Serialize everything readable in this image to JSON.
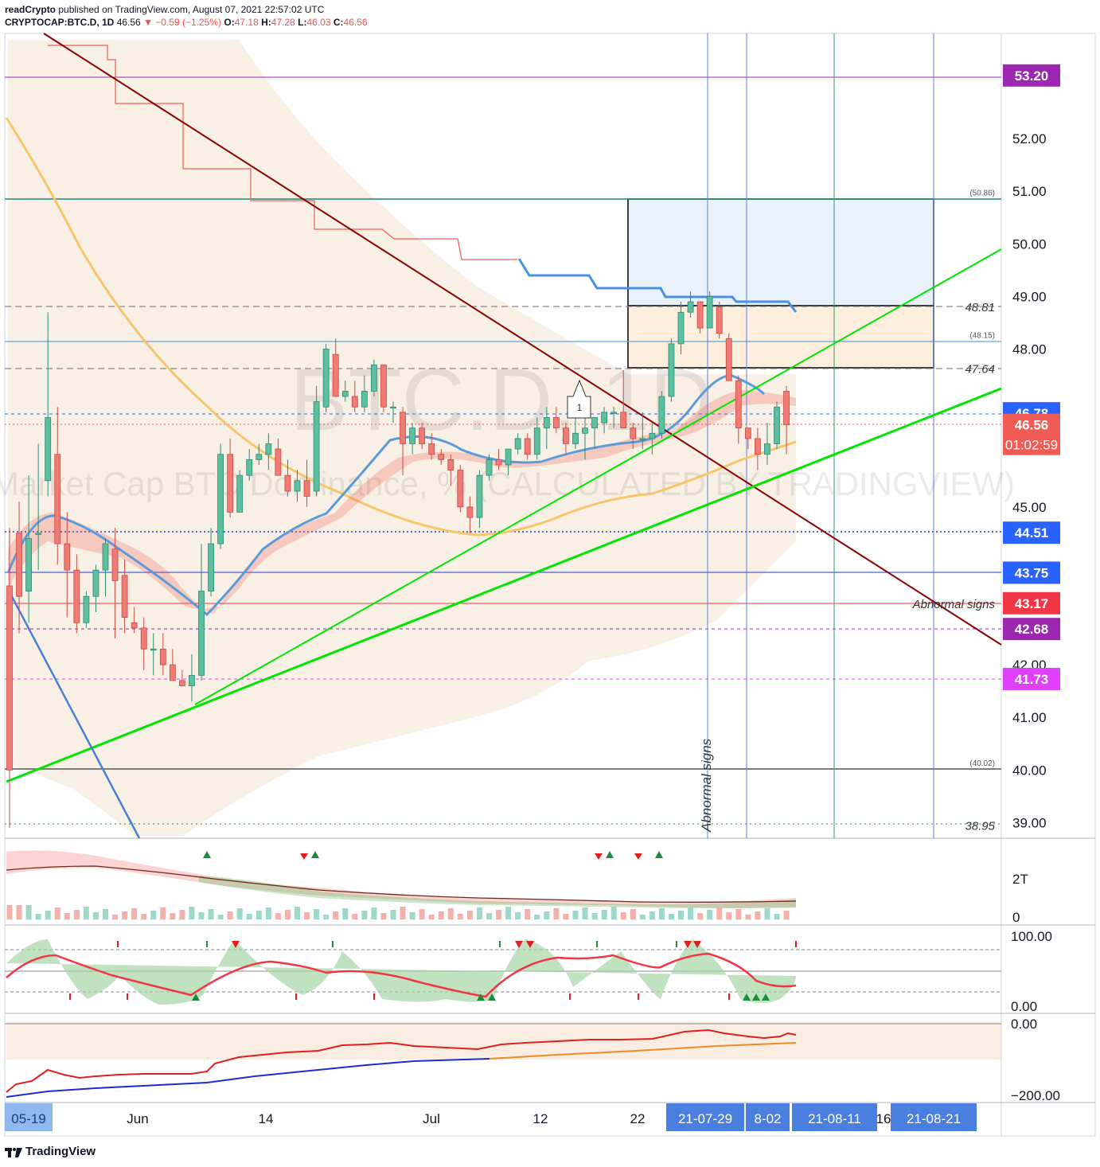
{
  "header": {
    "author": "readCrypto",
    "published_text": "published on TradingView.com, August 07, 2021 22:57:02 UTC",
    "symbol": "CRYPTOCAP:BTC.D, 1D",
    "last": "46.56",
    "change": "−0.59 (−1.25%)",
    "o_label": "O:",
    "o": "47.18",
    "h_label": "H:",
    "h": "47.28",
    "l_label": "L:",
    "l": "46.03",
    "c_label": "C:",
    "c": "46.56"
  },
  "watermark": {
    "ticker": "BTC.D, 1D",
    "description": "Market Cap BTC Dominance, % (CALCULATED BY TRADINGVIEW)"
  },
  "footer": {
    "brand": "TradingView"
  },
  "colors": {
    "up": "#26a69a",
    "down": "#ef5350",
    "purple": "#9c27b0",
    "blue_badge": "#2962ff",
    "red_badge": "#f23645",
    "magenta_badge": "#e040fb",
    "green_line": "#00e600",
    "dark_red_line": "#8b0000"
  },
  "chart_data": {
    "type": "candlestick",
    "title": "CRYPTOCAP:BTC.D, 1D",
    "y_axis": {
      "ticks": [
        "52.00",
        "51.00",
        "50.00",
        "49.00",
        "48.00",
        "45.00",
        "42.00",
        "41.00",
        "40.00",
        "39.00"
      ],
      "range": [
        38.7,
        53.6
      ]
    },
    "x_axis": {
      "ticks": [
        "Jun",
        "14",
        "Jul",
        "12",
        "22",
        "16"
      ]
    },
    "x_badges": [
      "05-19",
      "21-07-29",
      "8-02",
      "21-08-11",
      "21-08-21"
    ],
    "price_badges": [
      {
        "value": "53.20",
        "color": "#9c27b0"
      },
      {
        "value": "46.78",
        "color": "#2962ff"
      },
      {
        "value": "46.56",
        "extra": "01:02:59",
        "color": "#f05b55"
      },
      {
        "value": "44.51",
        "color": "#2962ff"
      },
      {
        "value": "43.75",
        "color": "#2962ff"
      },
      {
        "value": "43.17",
        "color": "#f23645"
      },
      {
        "value": "42.68",
        "color": "#9c27b0"
      },
      {
        "value": "41.73",
        "color": "#e040fb"
      }
    ],
    "level_labels": [
      {
        "value": "48.81",
        "text": "48.81"
      },
      {
        "value": "47.64",
        "text": "47.64"
      },
      {
        "value": "38.95",
        "text": "38.95"
      },
      {
        "value": "50.86",
        "text": "(50.86)"
      },
      {
        "value": "48.15",
        "text": "(48.15)"
      },
      {
        "value": "40.02",
        "text": "(40.02)"
      }
    ],
    "annotations": [
      "Abnormal signs",
      "Abnormal signs",
      "1"
    ],
    "candles": [
      [
        43.5,
        44.6,
        38.9,
        40.0
      ],
      [
        44.5,
        45.1,
        42.6,
        43.3
      ],
      [
        43.4,
        45.6,
        42.8,
        44.4
      ],
      [
        44.5,
        46.2,
        43.8,
        44.5
      ],
      [
        45.5,
        48.7,
        45.2,
        46.7
      ],
      [
        46.0,
        46.9,
        43.9,
        44.3
      ],
      [
        44.3,
        44.9,
        42.9,
        43.8
      ],
      [
        43.8,
        44.1,
        42.6,
        42.8
      ],
      [
        42.8,
        43.4,
        42.7,
        43.3
      ],
      [
        43.3,
        43.9,
        43.0,
        43.8
      ],
      [
        43.8,
        44.4,
        43.3,
        44.3
      ],
      [
        44.2,
        44.6,
        42.5,
        43.6
      ],
      [
        43.7,
        44.0,
        42.6,
        42.9
      ],
      [
        42.8,
        43.1,
        42.6,
        42.7
      ],
      [
        42.7,
        42.9,
        41.9,
        42.3
      ],
      [
        42.3,
        42.6,
        41.8,
        42.3
      ],
      [
        42.3,
        42.6,
        41.8,
        42.0
      ],
      [
        42.0,
        42.3,
        41.7,
        41.7
      ],
      [
        41.7,
        41.9,
        41.6,
        41.6
      ],
      [
        41.6,
        42.2,
        41.3,
        41.8
      ],
      [
        41.8,
        44.3,
        41.7,
        43.4
      ],
      [
        43.4,
        44.6,
        43.3,
        44.3
      ],
      [
        44.3,
        46.2,
        44.2,
        46.0
      ],
      [
        46.0,
        46.3,
        44.8,
        44.9
      ],
      [
        44.9,
        45.7,
        44.9,
        45.6
      ],
      [
        45.6,
        46.1,
        45.5,
        45.9
      ],
      [
        45.9,
        46.2,
        45.8,
        46.0
      ],
      [
        46.0,
        46.4,
        45.7,
        46.2
      ],
      [
        46.1,
        46.3,
        45.6,
        45.6
      ],
      [
        45.6,
        45.9,
        45.2,
        45.3
      ],
      [
        45.3,
        45.7,
        45.1,
        45.5
      ],
      [
        45.5,
        45.9,
        45.0,
        45.2
      ],
      [
        45.3,
        47.3,
        45.2,
        47.0
      ],
      [
        46.9,
        48.1,
        46.8,
        48.0
      ],
      [
        47.9,
        48.2,
        47.1,
        47.1
      ],
      [
        47.1,
        47.4,
        47.0,
        47.2
      ],
      [
        47.1,
        47.4,
        46.8,
        46.9
      ],
      [
        46.9,
        47.5,
        46.8,
        47.2
      ],
      [
        47.2,
        47.8,
        47.1,
        47.7
      ],
      [
        47.7,
        47.7,
        46.8,
        46.9
      ],
      [
        46.9,
        47.0,
        46.6,
        46.9
      ],
      [
        46.8,
        46.9,
        45.6,
        46.2
      ],
      [
        46.2,
        46.6,
        46.0,
        46.5
      ],
      [
        46.5,
        46.6,
        46.1,
        46.2
      ],
      [
        46.2,
        46.4,
        45.9,
        46.0
      ],
      [
        46.0,
        46.1,
        45.8,
        45.9
      ],
      [
        45.9,
        46.0,
        45.4,
        45.7
      ],
      [
        45.7,
        45.8,
        44.9,
        45.0
      ],
      [
        45.0,
        45.2,
        44.5,
        44.8
      ],
      [
        44.8,
        45.7,
        44.6,
        45.6
      ],
      [
        45.6,
        46.0,
        45.5,
        45.9
      ],
      [
        45.9,
        46.1,
        45.7,
        45.8
      ],
      [
        45.8,
        46.1,
        45.6,
        46.1
      ],
      [
        46.1,
        46.4,
        46.0,
        46.3
      ],
      [
        46.3,
        46.4,
        45.9,
        46.0
      ],
      [
        46.0,
        46.7,
        45.9,
        46.5
      ],
      [
        46.5,
        46.9,
        46.1,
        46.7
      ],
      [
        46.7,
        46.9,
        46.4,
        46.5
      ],
      [
        46.5,
        46.6,
        46.0,
        46.2
      ],
      [
        46.2,
        46.7,
        46.1,
        46.4
      ],
      [
        46.4,
        46.7,
        45.9,
        46.5
      ],
      [
        46.5,
        46.6,
        46.1,
        46.7
      ],
      [
        46.6,
        46.9,
        46.4,
        46.8
      ],
      [
        46.8,
        46.9,
        46.5,
        46.8
      ],
      [
        46.8,
        47.6,
        46.5,
        46.5
      ],
      [
        46.5,
        46.6,
        46.1,
        46.3
      ],
      [
        46.3,
        46.8,
        46.1,
        46.3
      ],
      [
        46.3,
        46.6,
        46.0,
        46.4
      ],
      [
        46.4,
        47.2,
        46.3,
        47.1
      ],
      [
        47.1,
        48.2,
        47.0,
        48.1
      ],
      [
        48.1,
        48.9,
        47.9,
        48.7
      ],
      [
        48.7,
        49.1,
        48.6,
        48.9
      ],
      [
        48.9,
        48.9,
        48.3,
        48.4
      ],
      [
        48.4,
        49.1,
        48.4,
        49.0
      ],
      [
        48.8,
        48.9,
        48.2,
        48.3
      ],
      [
        48.2,
        48.3,
        47.4,
        47.4
      ],
      [
        47.4,
        47.5,
        46.2,
        46.5
      ],
      [
        46.5,
        46.5,
        46.1,
        46.3
      ],
      [
        46.3,
        46.5,
        45.7,
        46.0
      ],
      [
        46.0,
        46.6,
        45.8,
        46.2
      ],
      [
        46.2,
        47.0,
        46.1,
        46.9
      ],
      [
        47.2,
        47.3,
        46.0,
        46.56
      ]
    ]
  }
}
